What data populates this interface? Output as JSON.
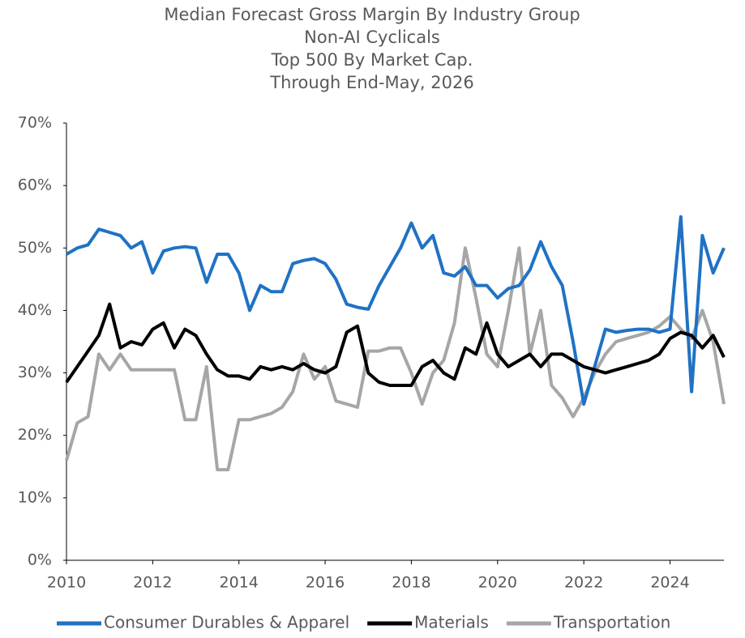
{
  "chart_data": {
    "type": "line",
    "title": [
      "Median Forecast Gross Margin By Industry Group",
      "Non-AI Cyclicals",
      "Top 500 By Market Cap.",
      "Through End-May, 2026"
    ],
    "x": [
      2010,
      2010.25,
      2010.5,
      2010.75,
      2011,
      2011.25,
      2011.5,
      2011.75,
      2012,
      2012.25,
      2012.5,
      2012.75,
      2013,
      2013.25,
      2013.5,
      2013.75,
      2014,
      2014.25,
      2014.5,
      2014.75,
      2015,
      2015.25,
      2015.5,
      2015.75,
      2016,
      2016.25,
      2016.5,
      2016.75,
      2017,
      2017.25,
      2017.5,
      2017.75,
      2018,
      2018.25,
      2018.5,
      2018.75,
      2019,
      2019.25,
      2019.5,
      2019.75,
      2020,
      2020.25,
      2020.5,
      2020.75,
      2021,
      2021.25,
      2021.5,
      2021.75,
      2022,
      2022.25,
      2022.5,
      2022.75,
      2023,
      2023.25,
      2023.5,
      2023.75,
      2024,
      2024.25,
      2024.5,
      2024.75,
      2025,
      2025.25
    ],
    "series": [
      {
        "name": "Consumer Durables & Apparel",
        "color": "#1f72c4",
        "values": [
          49,
          50,
          50.5,
          53,
          52.5,
          52,
          50,
          51,
          46,
          49.5,
          50,
          50.2,
          50,
          44.5,
          49,
          49,
          46,
          40,
          44,
          43,
          43,
          47.5,
          48,
          48.3,
          47.5,
          45,
          41,
          40.5,
          40.2,
          44,
          47,
          50,
          54,
          50,
          52,
          46,
          45.5,
          47,
          44,
          44,
          42,
          43.5,
          44,
          46.5,
          51,
          47,
          44,
          35,
          25,
          31,
          37,
          36.5,
          36.8,
          37,
          37,
          36.5,
          37,
          55,
          27,
          52,
          46,
          50
        ]
      },
      {
        "name": "Materials",
        "color": "#000000",
        "values": [
          28.5,
          31,
          33.5,
          36,
          41,
          34,
          35,
          34.5,
          37,
          38,
          34,
          37,
          36,
          33,
          30.5,
          29.5,
          29.5,
          29,
          31,
          30.5,
          31,
          30.5,
          31.5,
          30.5,
          30,
          31,
          36.5,
          37.5,
          30,
          28.5,
          28,
          28,
          28,
          31,
          32,
          30,
          29,
          34,
          33,
          38,
          33,
          31,
          32,
          33,
          31,
          33,
          33,
          32,
          31,
          30.5,
          30,
          30.5,
          31,
          31.5,
          32,
          33,
          35.5,
          36.5,
          36,
          34,
          36,
          32.5
        ]
      },
      {
        "name": "Transportation",
        "color": "#a6a6a6",
        "values": [
          16,
          22,
          23,
          33,
          30.5,
          33,
          30.5,
          30.5,
          30.5,
          30.5,
          30.5,
          22.5,
          22.5,
          31,
          14.5,
          14.5,
          22.5,
          22.5,
          23,
          23.5,
          24.5,
          27,
          33,
          29,
          31,
          25.5,
          25,
          24.5,
          33.5,
          33.5,
          34,
          34,
          30,
          25,
          30,
          32,
          38,
          50,
          42,
          33,
          31,
          40,
          50,
          33,
          40,
          28,
          26,
          23,
          26,
          30,
          33,
          35,
          35.5,
          36,
          36.5,
          37.5,
          39,
          37,
          35.5,
          40,
          35,
          25
        ]
      }
    ],
    "xlim": [
      2010,
      2025.25
    ],
    "xticks": [
      2010,
      2012,
      2014,
      2016,
      2018,
      2020,
      2022,
      2024
    ],
    "ylim": [
      0,
      70
    ],
    "yticks": [
      {
        "value": 0,
        "label": "0%"
      },
      {
        "value": 10,
        "label": "10%"
      },
      {
        "value": 20,
        "label": "20%"
      },
      {
        "value": 30,
        "label": "30%"
      },
      {
        "value": 40,
        "label": "40%"
      },
      {
        "value": 50,
        "label": "50%"
      },
      {
        "value": 60,
        "label": "60%"
      },
      {
        "value": 70,
        "label": "70%"
      }
    ],
    "legend": "bottom"
  }
}
